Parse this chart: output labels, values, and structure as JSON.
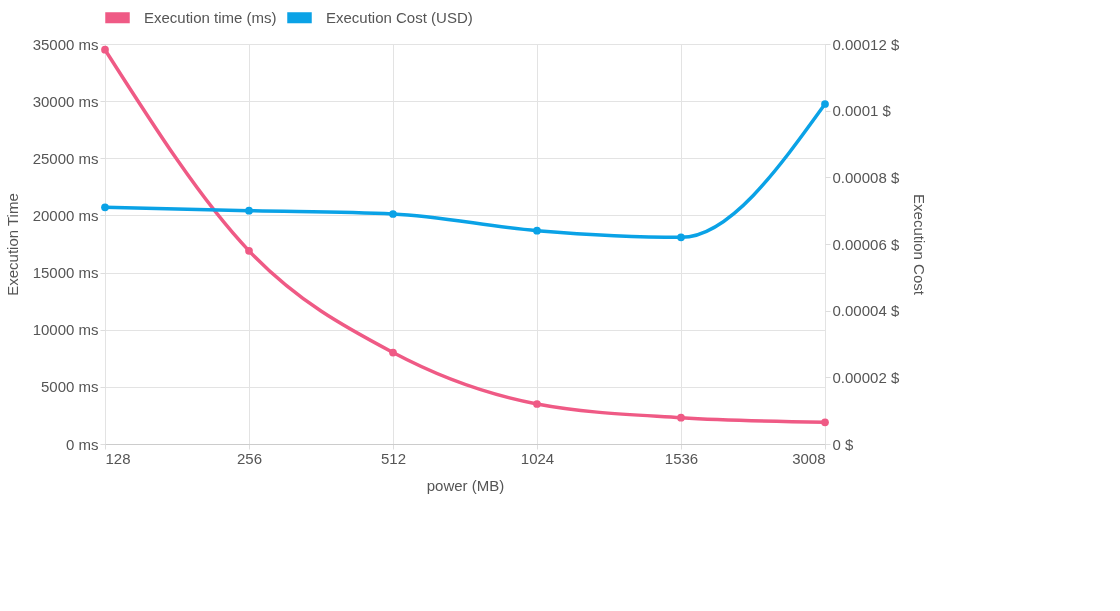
{
  "chart_data": {
    "type": "line",
    "xlabel": "power (MB)",
    "ylabel": "Execution Time",
    "y2label": "Execution Cost",
    "categories": [
      "128",
      "256",
      "512",
      "1024",
      "1536",
      "3008"
    ],
    "series": [
      {
        "name": "Execution time (ms)",
        "color": "#ef5a85",
        "axis": "y",
        "values": [
          34500,
          16900,
          8000,
          3500,
          2300,
          1900
        ]
      },
      {
        "name": "Execution Cost (USD)",
        "color": "#0aa2e6",
        "axis": "y2",
        "values": [
          7.1e-05,
          7e-05,
          6.9e-05,
          6.4e-05,
          6.2e-05,
          0.000102
        ]
      }
    ],
    "ylim": [
      0,
      35000
    ],
    "yticks": [
      {
        "value": 0,
        "label": "0 ms"
      },
      {
        "value": 5000,
        "label": "5000 ms"
      },
      {
        "value": 10000,
        "label": "10000 ms"
      },
      {
        "value": 15000,
        "label": "15000 ms"
      },
      {
        "value": 20000,
        "label": "20000 ms"
      },
      {
        "value": 25000,
        "label": "25000 ms"
      },
      {
        "value": 30000,
        "label": "30000 ms"
      },
      {
        "value": 35000,
        "label": "35000 ms"
      }
    ],
    "y2lim": [
      0,
      0.00012
    ],
    "y2ticks": [
      {
        "value": 0,
        "label": "0 $"
      },
      {
        "value": 2e-05,
        "label": "0.00002 $"
      },
      {
        "value": 4e-05,
        "label": "0.00004 $"
      },
      {
        "value": 6e-05,
        "label": "0.00006 $"
      },
      {
        "value": 8e-05,
        "label": "0.00008 $"
      },
      {
        "value": 0.0001,
        "label": "0.0001 $"
      },
      {
        "value": 0.00012,
        "label": "0.00012 $"
      }
    ],
    "grid": true,
    "legend": "top",
    "marker": "circle",
    "line_style": "solid"
  }
}
